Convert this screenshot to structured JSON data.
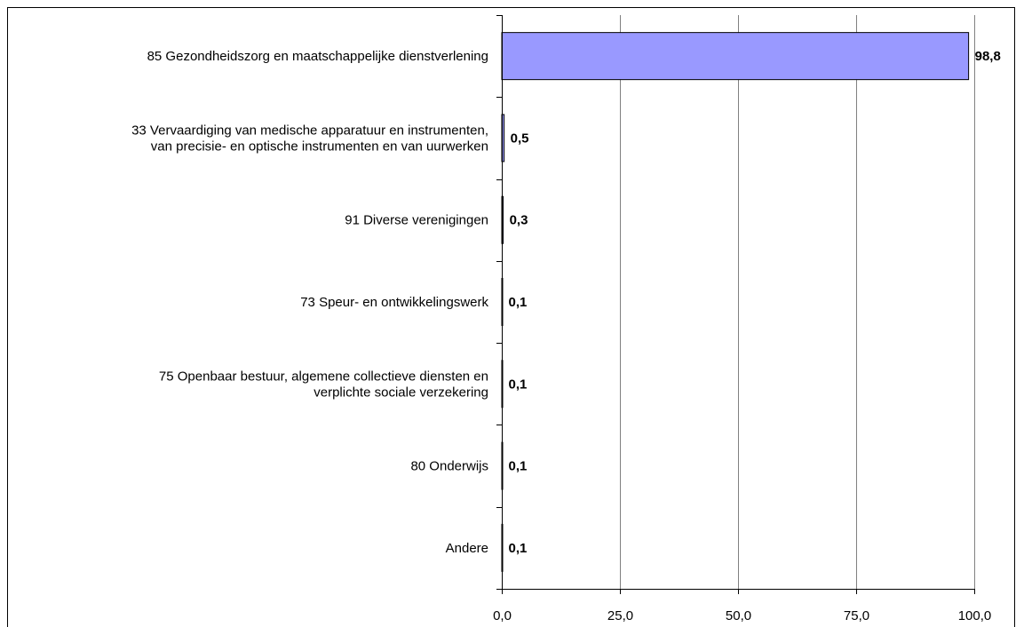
{
  "chart_data": {
    "type": "bar",
    "orientation": "horizontal",
    "categories": [
      [
        "85 Gezondheidszorg en maatschappelijke dienstverlening"
      ],
      [
        "33 Vervaardiging van medische apparatuur en instrumenten,",
        "van precisie- en optische instrumenten en van uurwerken"
      ],
      [
        "91 Diverse verenigingen"
      ],
      [
        "73 Speur- en ontwikkelingswerk"
      ],
      [
        "75 Openbaar bestuur, algemene collectieve diensten en",
        "verplichte sociale verzekering"
      ],
      [
        "80 Onderwijs"
      ],
      [
        "Andere"
      ]
    ],
    "values": [
      98.8,
      0.5,
      0.3,
      0.1,
      0.1,
      0.1,
      0.1
    ],
    "value_labels": [
      "98,8",
      "0,5",
      "0,3",
      "0,1",
      "0,1",
      "0,1",
      "0,1"
    ],
    "xlim": [
      0,
      100
    ],
    "xticks": [
      0,
      25,
      50,
      75,
      100
    ],
    "xtick_labels": [
      "0,0",
      "25,0",
      "50,0",
      "75,0",
      "100,0"
    ],
    "grid": "vertical",
    "legend": "none",
    "colors": {
      "bar_fill": "#9999ff",
      "bar_stroke": "#000000",
      "grid": "#808080",
      "axis": "#000000"
    }
  }
}
